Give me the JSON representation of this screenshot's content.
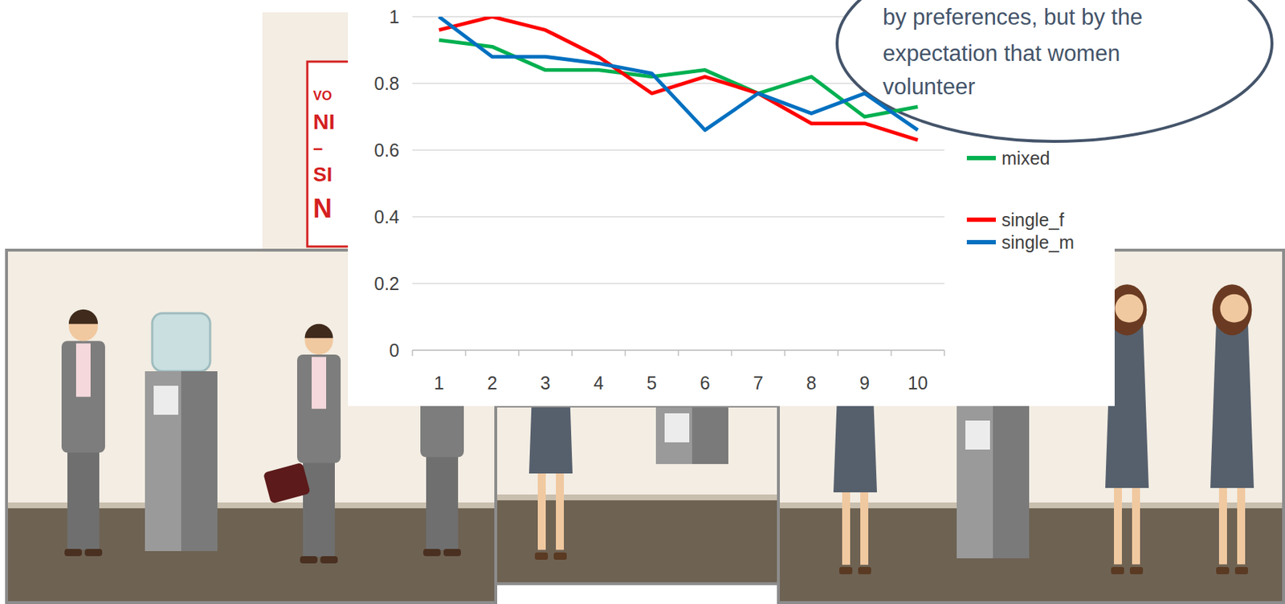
{
  "chart_data": {
    "type": "line",
    "categories": [
      1,
      2,
      3,
      4,
      5,
      6,
      7,
      8,
      9,
      10
    ],
    "series": [
      {
        "name": "mixed",
        "color": "#00b050",
        "values": [
          0.93,
          0.91,
          0.84,
          0.84,
          0.82,
          0.84,
          0.77,
          0.82,
          0.7,
          0.73
        ]
      },
      {
        "name": "single_f",
        "color": "#ff0000",
        "values": [
          0.96,
          1.0,
          0.96,
          0.88,
          0.77,
          0.82,
          0.77,
          0.68,
          0.68,
          0.63
        ]
      },
      {
        "name": "single_m",
        "color": "#0070c0",
        "values": [
          1.0,
          0.88,
          0.88,
          0.86,
          0.83,
          0.66,
          0.77,
          0.71,
          0.77,
          0.66
        ]
      }
    ],
    "ylim": [
      0,
      1
    ],
    "yticks": [
      0,
      0.2,
      0.4,
      0.6,
      0.8,
      1
    ],
    "grid": true,
    "legend": "right"
  },
  "annotation": {
    "lines": [
      "by preferences, but by the",
      "expectation that women",
      "volunteer"
    ]
  },
  "poster": {
    "lines": [
      "VO",
      "NI",
      "–",
      "SI",
      "N"
    ]
  }
}
